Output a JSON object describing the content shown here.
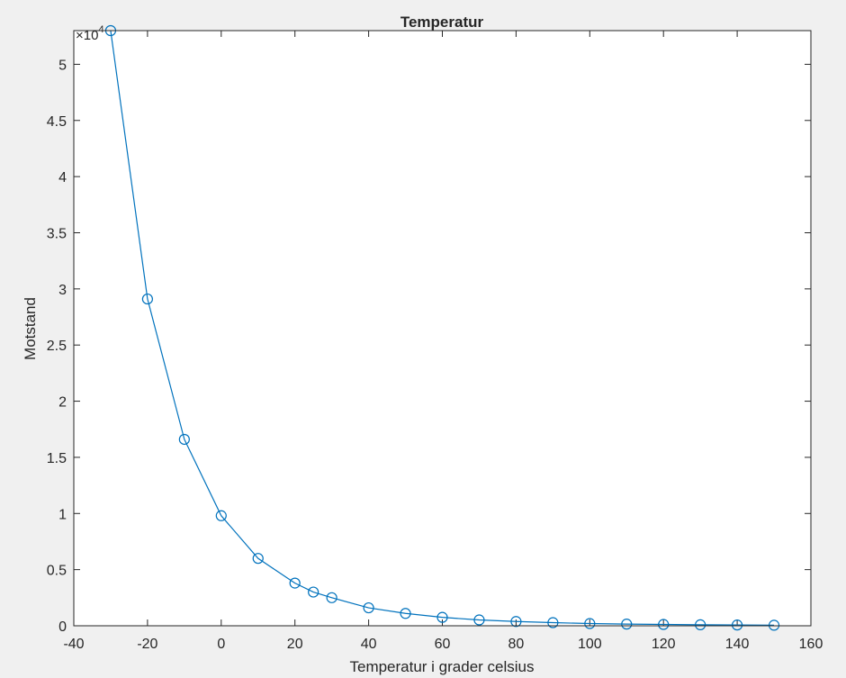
{
  "chart_data": {
    "type": "line",
    "title": "Temperatur",
    "xlabel": "Temperatur i grader celsius",
    "ylabel": "Motstand",
    "y_exponent_label": "×10",
    "y_exponent_power": "4",
    "xlim": [
      -40,
      160
    ],
    "ylim": [
      0,
      53000
    ],
    "x_ticks": [
      -40,
      -20,
      0,
      20,
      40,
      60,
      80,
      100,
      120,
      140,
      160
    ],
    "x_tick_labels": [
      "-40",
      "-20",
      "0",
      "20",
      "40",
      "60",
      "80",
      "100",
      "120",
      "140",
      "160"
    ],
    "y_ticks": [
      0,
      5000,
      10000,
      15000,
      20000,
      25000,
      30000,
      35000,
      40000,
      45000,
      50000
    ],
    "y_tick_labels": [
      "0",
      "0.5",
      "1",
      "1.5",
      "2",
      "2.5",
      "3",
      "3.5",
      "4",
      "4.5",
      "5"
    ],
    "grid": false,
    "marker": "circle",
    "line_color": "#0072BD",
    "series": [
      {
        "x": [
          -30,
          -20,
          -10,
          0,
          10,
          20,
          25,
          30,
          40,
          50,
          60,
          70,
          80,
          90,
          100,
          110,
          120,
          130,
          140,
          150
        ],
        "y": [
          53000,
          29100,
          16600,
          9800,
          6000,
          3800,
          3000,
          2500,
          1600,
          1100,
          750,
          520,
          380,
          280,
          200,
          150,
          120,
          90,
          70,
          50
        ]
      }
    ]
  }
}
